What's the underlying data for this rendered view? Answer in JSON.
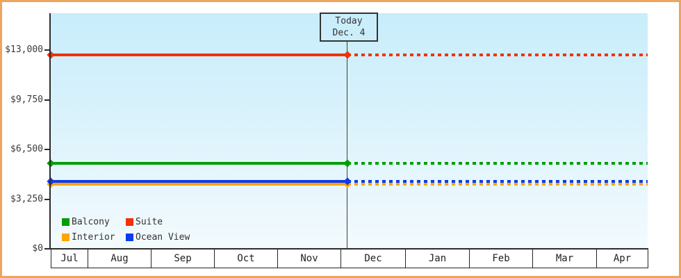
{
  "window": {
    "frame_border_color": "#eda55e",
    "plot_bg_top_color": "#c8edfb",
    "plot_bg_bottom_color": "#f3fafd"
  },
  "chart_data": {
    "type": "line",
    "description": "Cruise cabin price history by category; solid lines are past prices, dotted lines are projected/unchanged prices after today",
    "x_categories": [
      "Jul",
      "Aug",
      "Sep",
      "Oct",
      "Nov",
      "Dec",
      "Jan",
      "Feb",
      "Mar",
      "Apr"
    ],
    "y_ticks": [
      {
        "label": "$0",
        "value": 0
      },
      {
        "label": "$3,250",
        "value": 3250
      },
      {
        "label": "$6,500",
        "value": 6500
      },
      {
        "label": "$9,750",
        "value": 9750
      },
      {
        "label": "$13,000",
        "value": 13000
      }
    ],
    "ylim": [
      0,
      15400
    ],
    "grid": false,
    "annotation": {
      "line1": "Today",
      "line2": "Dec. 4",
      "marker_date": "Dec. 4"
    },
    "series": [
      {
        "name": "Interior",
        "color": "#ffa500",
        "value": 4220,
        "style_before_today": "solid",
        "style_after_today": "dotted"
      },
      {
        "name": "Ocean View",
        "color": "#0b3cf0",
        "value": 4420,
        "style_before_today": "solid",
        "style_after_today": "dotted"
      },
      {
        "name": "Balcony",
        "color": "#009e00",
        "value": 5570,
        "style_before_today": "solid",
        "style_after_today": "dotted"
      },
      {
        "name": "Suite",
        "color": "#f43000",
        "value": 12700,
        "style_before_today": "solid",
        "style_after_today": "dotted"
      }
    ],
    "legend": {
      "position": "bottom-left",
      "items": [
        {
          "label": "Balcony",
          "color": "#009e00"
        },
        {
          "label": "Suite",
          "color": "#f43000"
        },
        {
          "label": "Interior",
          "color": "#ffa500"
        },
        {
          "label": "Ocean View",
          "color": "#0b3cf0"
        }
      ]
    }
  }
}
